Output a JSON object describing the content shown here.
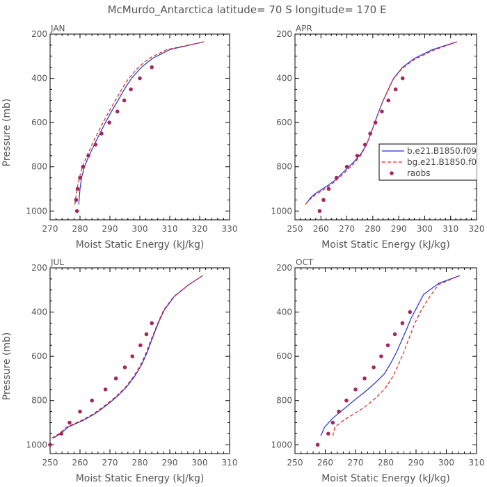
{
  "title": "McMurdo_Antarctica  latitude= 70 S longitude= 170 E",
  "colors": {
    "series_b": "#1f2fd6",
    "series_bg": "#e0201c",
    "raobs": "#a3285c",
    "axis": "#000000",
    "text": "#555555"
  },
  "legend": {
    "entries": [
      {
        "label": "b.e21.B1850.f09",
        "style": "solid",
        "color": "#1f2fd6"
      },
      {
        "label": "bg.e21.B1850.f0",
        "style": "dashed",
        "color": "#e0201c"
      },
      {
        "label": "raobs",
        "style": "dot",
        "color": "#a3285c"
      }
    ]
  },
  "chart_data": [
    {
      "type": "line",
      "panel": "JAN",
      "xlabel": "Moist Static Energy (kJ/kg)",
      "ylabel": "Pressure (mb)",
      "xlim": [
        270,
        330
      ],
      "ylim": [
        1000,
        200
      ],
      "xticks": [
        270,
        280,
        290,
        300,
        310,
        320,
        330
      ],
      "yticks": [
        200,
        400,
        600,
        800,
        1000
      ],
      "series": [
        {
          "name": "b.e21.B1850.f09",
          "points": [
            [
              279.6,
              970
            ],
            [
              279.7,
              950
            ],
            [
              280,
              900
            ],
            [
              280.5,
              850
            ],
            [
              281.5,
              800
            ],
            [
              283,
              750
            ],
            [
              284.8,
              700
            ],
            [
              286.6,
              650
            ],
            [
              288.5,
              600
            ],
            [
              290.5,
              550
            ],
            [
              292.7,
              500
            ],
            [
              294.8,
              450
            ],
            [
              297.2,
              400
            ],
            [
              300.5,
              350
            ],
            [
              304.2,
              310
            ],
            [
              310,
              270
            ],
            [
              321.5,
              235
            ]
          ]
        },
        {
          "name": "bg.e21.B1850.f0",
          "points": [
            [
              278.3,
              970
            ],
            [
              278.5,
              950
            ],
            [
              279,
              900
            ],
            [
              279.8,
              850
            ],
            [
              280.8,
              800
            ],
            [
              282.3,
              750
            ],
            [
              284,
              700
            ],
            [
              285.8,
              650
            ],
            [
              287.7,
              600
            ],
            [
              289.7,
              550
            ],
            [
              291.8,
              500
            ],
            [
              293.9,
              450
            ],
            [
              296.3,
              400
            ],
            [
              299.5,
              350
            ],
            [
              303,
              310
            ],
            [
              309,
              270
            ],
            [
              321.5,
              235
            ]
          ]
        }
      ],
      "raobs": [
        [
          279,
          1000
        ],
        [
          278.7,
          950
        ],
        [
          279.2,
          900
        ],
        [
          280,
          850
        ],
        [
          281,
          800
        ],
        [
          282.8,
          750
        ],
        [
          285.2,
          700
        ],
        [
          287.2,
          650
        ],
        [
          289.8,
          600
        ],
        [
          292.5,
          550
        ],
        [
          294.8,
          500
        ],
        [
          297,
          450
        ],
        [
          300,
          400
        ],
        [
          304,
          350
        ]
      ]
    },
    {
      "type": "line",
      "panel": "APR",
      "xlabel": "Moist Static Energy (kJ/kg)",
      "ylabel": "",
      "xlim": [
        250,
        320
      ],
      "ylim": [
        1000,
        200
      ],
      "xticks": [
        250,
        260,
        270,
        280,
        290,
        300,
        310,
        320
      ],
      "yticks": [
        200,
        400,
        600,
        800,
        1000
      ],
      "series": [
        {
          "name": "b.e21.B1850.f09",
          "points": [
            [
              254.8,
              960
            ],
            [
              256,
              940
            ],
            [
              258,
              920
            ],
            [
              262,
              890
            ],
            [
              265.5,
              860
            ],
            [
              269,
              820
            ],
            [
              272.5,
              780
            ],
            [
              275.5,
              740
            ],
            [
              277.6,
              700
            ],
            [
              279.2,
              650
            ],
            [
              280.8,
              600
            ],
            [
              282.3,
              550
            ],
            [
              284,
              500
            ],
            [
              286,
              450
            ],
            [
              288,
              400
            ],
            [
              291.5,
              350
            ],
            [
              296,
              310
            ],
            [
              303,
              270
            ],
            [
              312.5,
              235
            ]
          ]
        },
        {
          "name": "bg.e21.B1850.f0",
          "points": [
            [
              254,
              970
            ],
            [
              255.5,
              950
            ],
            [
              257.5,
              930
            ],
            [
              261.5,
              900
            ],
            [
              265,
              870
            ],
            [
              268.8,
              830
            ],
            [
              272.3,
              790
            ],
            [
              275.3,
              750
            ],
            [
              277.4,
              705
            ],
            [
              279,
              655
            ],
            [
              280.6,
              605
            ],
            [
              282.2,
              555
            ],
            [
              283.8,
              505
            ],
            [
              285.8,
              455
            ],
            [
              287.8,
              405
            ],
            [
              291.3,
              355
            ],
            [
              296,
              315
            ],
            [
              303,
              275
            ],
            [
              312.5,
              235
            ]
          ]
        }
      ],
      "raobs": [
        [
          259.5,
          1000
        ],
        [
          261,
          950
        ],
        [
          263,
          900
        ],
        [
          266,
          850
        ],
        [
          270,
          800
        ],
        [
          274,
          750
        ],
        [
          277,
          700
        ],
        [
          279,
          650
        ],
        [
          281,
          600
        ],
        [
          283.5,
          550
        ],
        [
          286,
          500
        ],
        [
          288.8,
          450
        ],
        [
          291.5,
          400
        ]
      ]
    },
    {
      "type": "line",
      "panel": "JUL",
      "xlabel": "Moist Static Energy (kJ/kg)",
      "ylabel": "Pressure (mb)",
      "xlim": [
        250,
        310
      ],
      "ylim": [
        1000,
        200
      ],
      "xticks": [
        250,
        260,
        270,
        280,
        290,
        300,
        310
      ],
      "yticks": [
        200,
        400,
        600,
        800,
        1000
      ],
      "series": [
        {
          "name": "b.e21.B1850.f09",
          "points": [
            [
              251,
              970
            ],
            [
              253.5,
              950
            ],
            [
              256,
              920
            ],
            [
              261,
              890
            ],
            [
              265,
              860
            ],
            [
              269,
              820
            ],
            [
              272.5,
              780
            ],
            [
              275.5,
              740
            ],
            [
              278.3,
              690
            ],
            [
              280.5,
              640
            ],
            [
              282.2,
              590
            ],
            [
              283.6,
              540
            ],
            [
              285,
              490
            ],
            [
              286.5,
              440
            ],
            [
              288.2,
              390
            ],
            [
              291.5,
              330
            ],
            [
              296,
              280
            ],
            [
              301,
              235
            ]
          ]
        },
        {
          "name": "bg.e21.B1850.f0",
          "points": [
            [
              250.5,
              970
            ],
            [
              253,
              950
            ],
            [
              255.5,
              920
            ],
            [
              260.5,
              890
            ],
            [
              264.5,
              860
            ],
            [
              268.5,
              820
            ],
            [
              272.2,
              780
            ],
            [
              275.2,
              740
            ],
            [
              278,
              690
            ],
            [
              280.2,
              640
            ],
            [
              281.9,
              590
            ],
            [
              283.3,
              540
            ],
            [
              284.8,
              490
            ],
            [
              286.3,
              440
            ],
            [
              288,
              390
            ],
            [
              291.3,
              330
            ],
            [
              296,
              280
            ],
            [
              301,
              235
            ]
          ]
        }
      ],
      "raobs": [
        [
          250,
          1000
        ],
        [
          253.8,
          950
        ],
        [
          256.5,
          900
        ],
        [
          260,
          850
        ],
        [
          264,
          800
        ],
        [
          268.5,
          750
        ],
        [
          272,
          700
        ],
        [
          275,
          650
        ],
        [
          277.5,
          600
        ],
        [
          280.2,
          550
        ],
        [
          282.2,
          500
        ],
        [
          284,
          450
        ]
      ]
    },
    {
      "type": "line",
      "panel": "OCT",
      "xlabel": "Moist Static Energy (kJ/kg)",
      "ylabel": "",
      "xlim": [
        250,
        310
      ],
      "ylim": [
        1000,
        200
      ],
      "xticks": [
        250,
        260,
        270,
        280,
        290,
        300,
        310
      ],
      "yticks": [
        200,
        400,
        600,
        800,
        1000
      ],
      "series": [
        {
          "name": "b.e21.B1850.f09",
          "points": [
            [
              258.5,
              960
            ],
            [
              259.8,
              920
            ],
            [
              262.5,
              880
            ],
            [
              266,
              840
            ],
            [
              269.5,
              800
            ],
            [
              273.2,
              760
            ],
            [
              276.5,
              720
            ],
            [
              279.5,
              680
            ],
            [
              281.7,
              630
            ],
            [
              283.6,
              580
            ],
            [
              285.2,
              530
            ],
            [
              286.8,
              480
            ],
            [
              288.3,
              430
            ],
            [
              290.2,
              380
            ],
            [
              292.5,
              320
            ],
            [
              297.5,
              270
            ],
            [
              304.5,
              235
            ]
          ]
        },
        {
          "name": "bg.e21.B1850.f0",
          "points": [
            [
              262.5,
              960
            ],
            [
              263.2,
              920
            ],
            [
              266,
              890
            ],
            [
              269.5,
              860
            ],
            [
              273,
              830
            ],
            [
              276.5,
              790
            ],
            [
              279.5,
              750
            ],
            [
              282,
              700
            ],
            [
              283.8,
              650
            ],
            [
              285.4,
              600
            ],
            [
              286.8,
              550
            ],
            [
              288.2,
              500
            ],
            [
              289.6,
              450
            ],
            [
              291.4,
              400
            ],
            [
              294,
              340
            ],
            [
              297.5,
              275
            ],
            [
              304.5,
              235
            ]
          ]
        }
      ],
      "raobs": [
        [
          257.5,
          1000
        ],
        [
          261,
          950
        ],
        [
          262.5,
          900
        ],
        [
          264.5,
          850
        ],
        [
          267,
          800
        ],
        [
          270,
          750
        ],
        [
          273,
          700
        ],
        [
          276,
          650
        ],
        [
          278.5,
          600
        ],
        [
          280.7,
          550
        ],
        [
          283,
          500
        ],
        [
          285.5,
          450
        ],
        [
          288,
          400
        ]
      ]
    }
  ],
  "panels_layout_note": ""
}
